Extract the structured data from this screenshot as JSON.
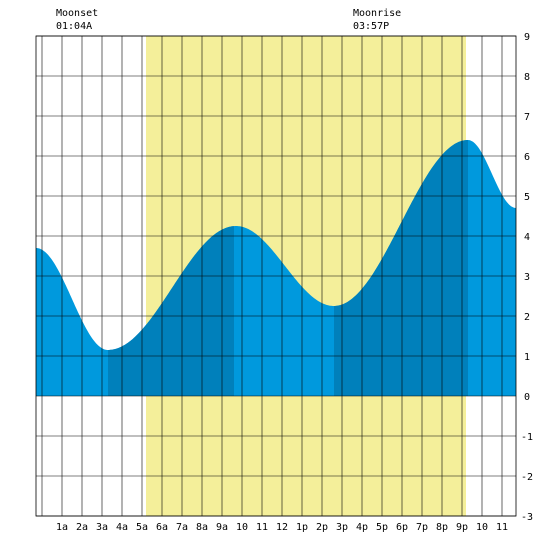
{
  "moon": {
    "set_label": "Moonset",
    "set_time": "01:04A",
    "rise_label": "Moonrise",
    "rise_time": "03:57P"
  },
  "colors": {
    "daylight": "#f4ef9a",
    "tide_light": "#0099dd",
    "tide_dark": "#0080bb",
    "grid": "#000000",
    "background": "#ffffff"
  },
  "chart_data": {
    "type": "area",
    "title": "",
    "xlabel": "",
    "ylabel": "",
    "x_unit": "hour of day",
    "xlim": [
      -0.3,
      23.7
    ],
    "ylim": [
      -3,
      9
    ],
    "grid": true,
    "x_tick_labels": [
      "1a",
      "2a",
      "3a",
      "4a",
      "5a",
      "6a",
      "7a",
      "8a",
      "9a",
      "10",
      "11",
      "12",
      "1p",
      "2p",
      "3p",
      "4p",
      "5p",
      "6p",
      "7p",
      "8p",
      "9p",
      "10",
      "11"
    ],
    "y_tick_labels": [
      "-3",
      "-2",
      "-1",
      "0",
      "1",
      "2",
      "3",
      "4",
      "5",
      "6",
      "7",
      "8",
      "9"
    ],
    "daylight_hours": [
      5.2,
      21.2
    ],
    "tide_extrema": [
      {
        "hour": -0.3,
        "height": 3.7
      },
      {
        "hour": 3.3,
        "height": 1.15
      },
      {
        "hour": 9.7,
        "height": 4.25
      },
      {
        "hour": 14.6,
        "height": 2.25
      },
      {
        "hour": 21.3,
        "height": 6.4
      },
      {
        "hour": 23.7,
        "height": 4.7
      }
    ],
    "shaded_intervals": [
      [
        3.3,
        9.6
      ],
      [
        14.6,
        21.3
      ]
    ]
  }
}
